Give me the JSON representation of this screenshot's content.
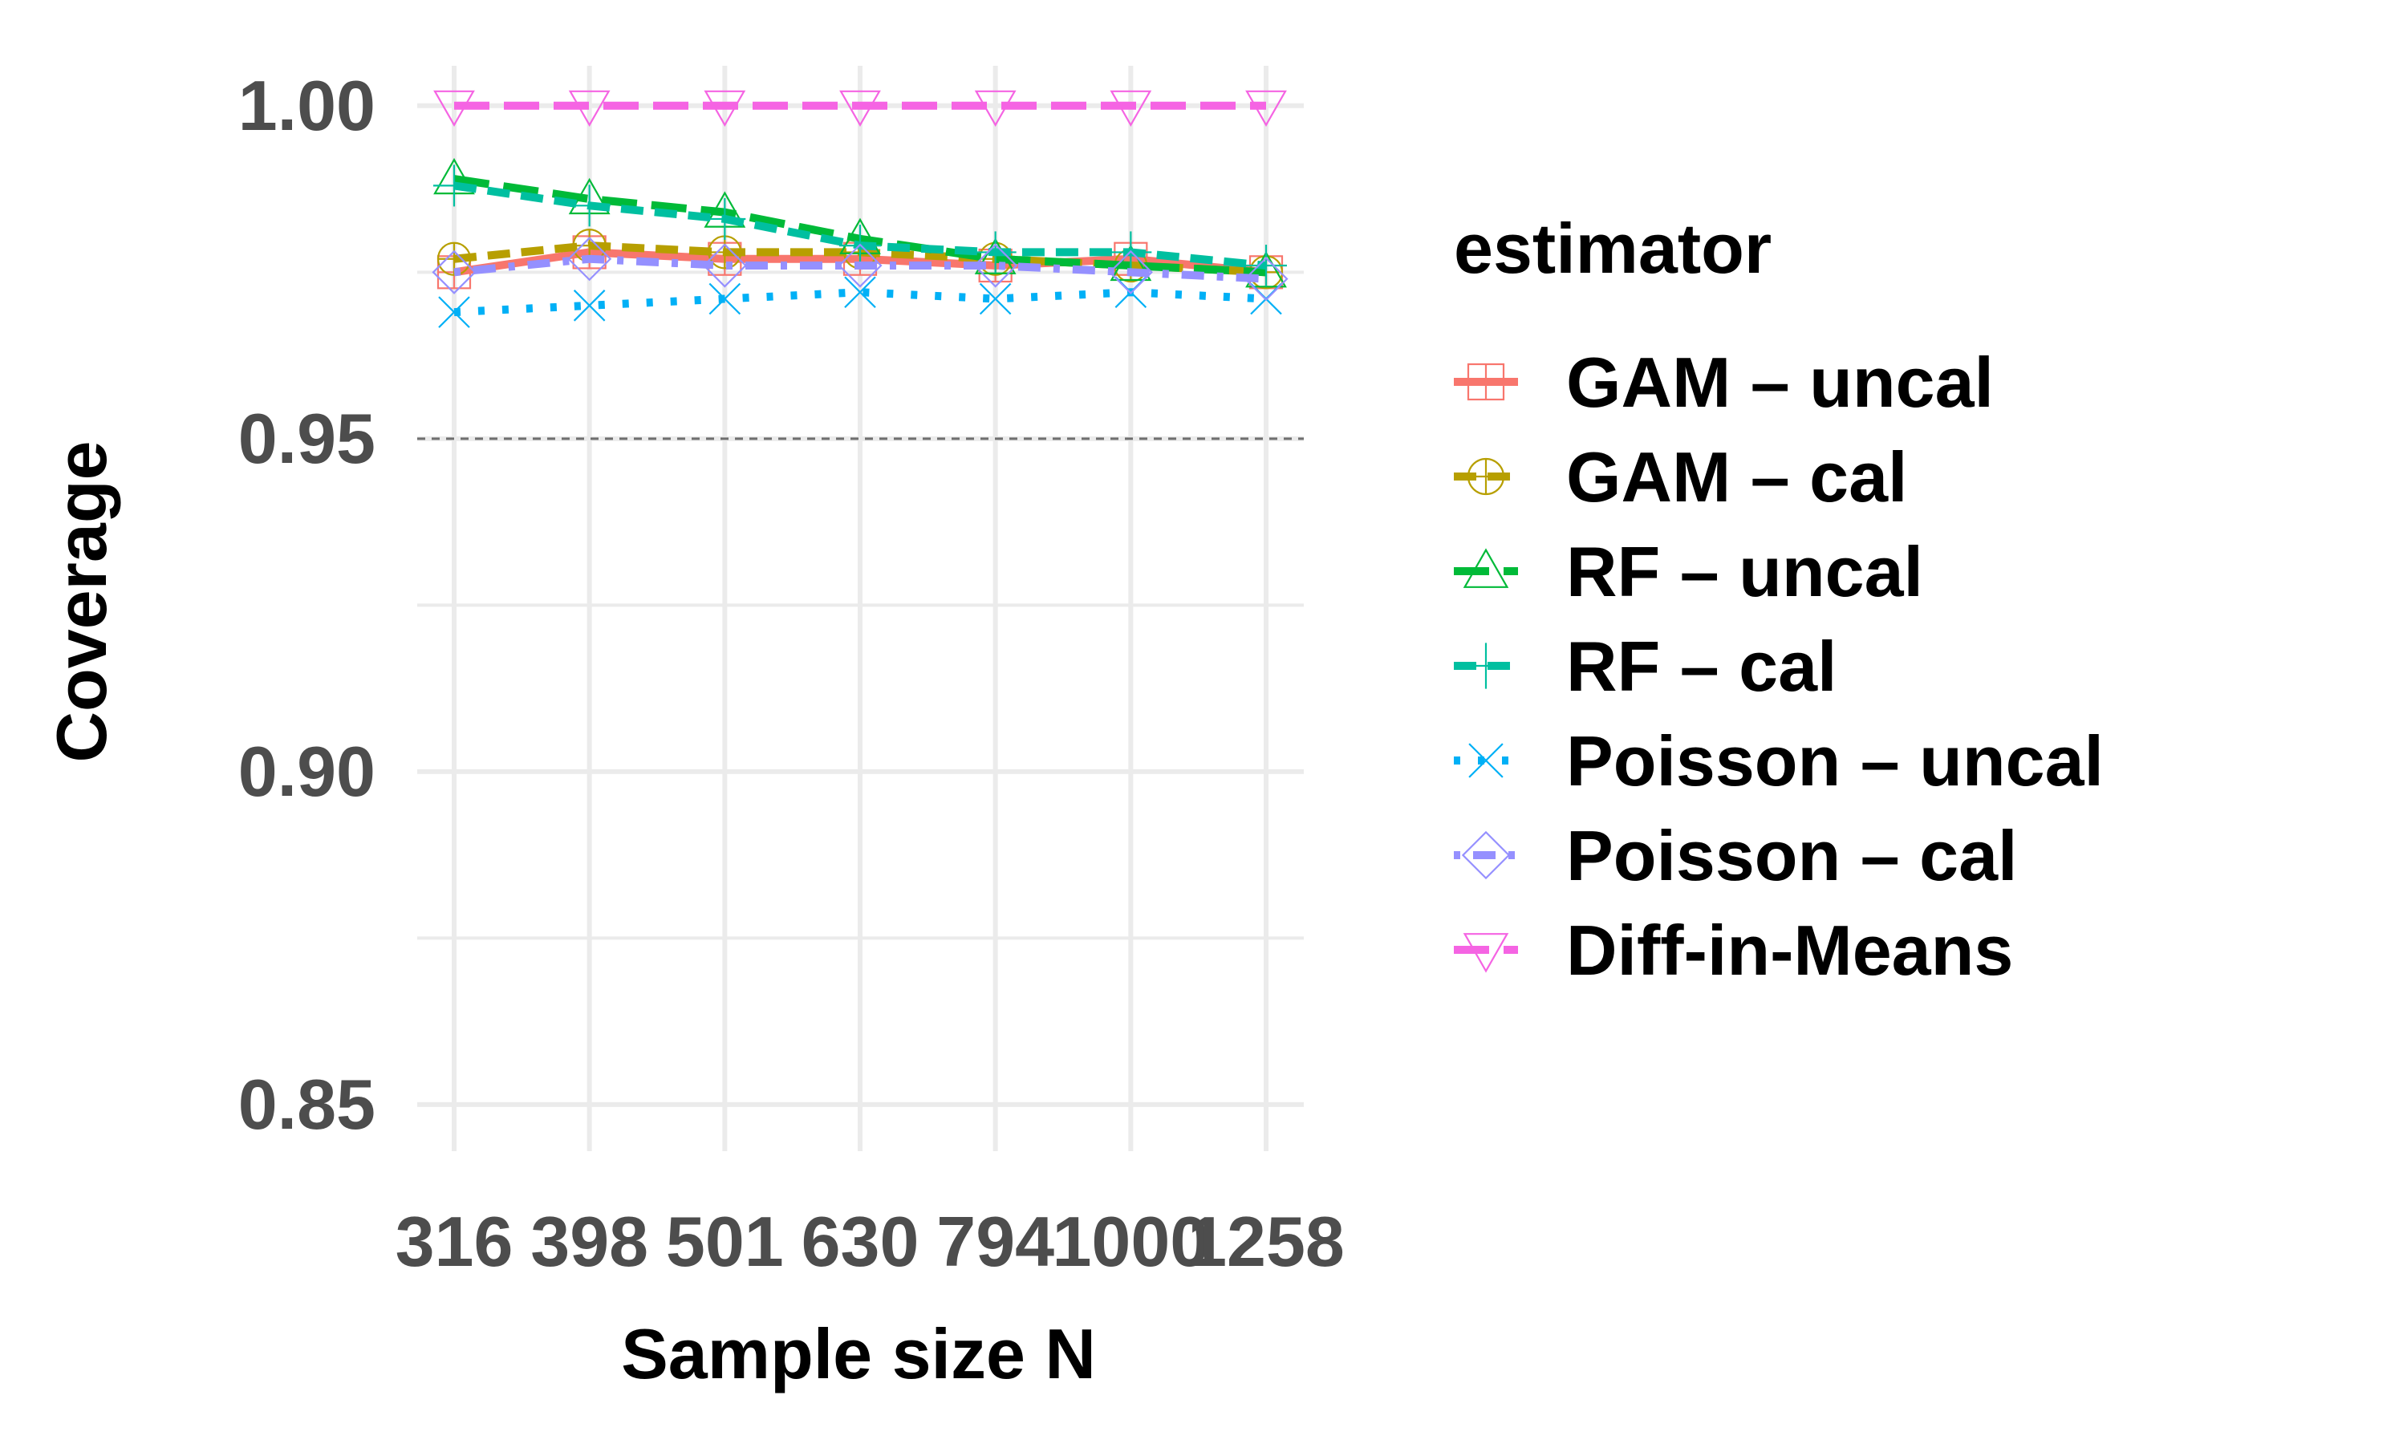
{
  "chart_data": {
    "type": "line",
    "xlabel": "Sample size N",
    "ylabel": "Coverage",
    "categories": [
      "316",
      "398",
      "501",
      "630",
      "794",
      "1000",
      "1258"
    ],
    "ylim": [
      0.843,
      1.006
    ],
    "yticks": [
      0.85,
      0.9,
      0.95,
      1.0
    ],
    "ytick_labels": [
      "0.85",
      "0.90",
      "0.95",
      "1.00"
    ],
    "grid": true,
    "reference_line": 0.95,
    "legend": {
      "title": "estimator",
      "position": "right"
    },
    "series": [
      {
        "name": "GAM – uncal",
        "color": "#F8766D",
        "linestyle": "solid",
        "marker": "square-cross",
        "values": [
          0.975,
          0.978,
          0.977,
          0.977,
          0.976,
          0.977,
          0.975
        ]
      },
      {
        "name": "GAM – cal",
        "color": "#B79F00",
        "linestyle": "dashed",
        "marker": "circle-plus",
        "values": [
          0.977,
          0.979,
          0.978,
          0.978,
          0.977,
          0.976,
          0.975
        ]
      },
      {
        "name": "RF – uncal",
        "color": "#00BA38",
        "linestyle": "longdash",
        "marker": "triangle-up",
        "values": [
          0.989,
          0.986,
          0.984,
          0.98,
          0.977,
          0.976,
          0.975
        ]
      },
      {
        "name": "RF – cal",
        "color": "#00BFA0",
        "linestyle": "dashed",
        "marker": "plus",
        "values": [
          0.988,
          0.985,
          0.983,
          0.979,
          0.978,
          0.978,
          0.976
        ]
      },
      {
        "name": "Poisson – uncal",
        "color": "#00B0F6",
        "linestyle": "dotted",
        "marker": "cross",
        "values": [
          0.969,
          0.97,
          0.971,
          0.972,
          0.971,
          0.972,
          0.971
        ]
      },
      {
        "name": "Poisson – cal",
        "color": "#9590FF",
        "linestyle": "dotdash",
        "marker": "diamond",
        "values": [
          0.975,
          0.977,
          0.976,
          0.976,
          0.976,
          0.975,
          0.974
        ]
      },
      {
        "name": "Diff-in-Means",
        "color": "#F564E3",
        "linestyle": "longdash",
        "marker": "triangle-down",
        "values": [
          1.0,
          1.0,
          1.0,
          1.0,
          1.0,
          1.0,
          1.0
        ]
      }
    ]
  }
}
